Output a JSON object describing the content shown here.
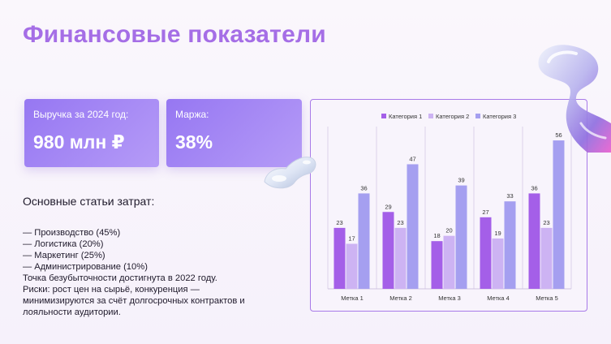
{
  "title": "Финансовые показатели",
  "cards": {
    "revenue": {
      "label": "Выручка за 2024 год:",
      "value": "980 млн ₽"
    },
    "margin": {
      "label": "Маржа:",
      "value": "38%"
    }
  },
  "costs": {
    "heading": "Основные статьи затрат:",
    "items": [
      "— Производство (45%)",
      "— Логистика (20%)",
      "— Маркетинг (25%)",
      "— Администрирование (10%)"
    ]
  },
  "notes": [
    "Точка безубыточности достигнута в 2022 году.",
    "Риски: рост цен на сырьё, конкуренция — минимизируются за счёт долгосрочных контрактов и лояльности аудитории."
  ],
  "colors": {
    "series1": "#a45fe8",
    "series2": "#cdb3f3",
    "series3": "#a59ff0",
    "title": "#a56ee6"
  },
  "chart_data": {
    "type": "bar",
    "categories": [
      "Метка 1",
      "Метка 2",
      "Метка 3",
      "Метка 4",
      "Метка 5"
    ],
    "series": [
      {
        "name": "Категория 1",
        "values": [
          23,
          29,
          18,
          27,
          36
        ]
      },
      {
        "name": "Категория 2",
        "values": [
          17,
          23,
          20,
          19,
          23
        ]
      },
      {
        "name": "Категория 3",
        "values": [
          36,
          47,
          39,
          33,
          56
        ]
      }
    ],
    "ylim": [
      0,
      60
    ],
    "grid": "vertical",
    "legend": "top",
    "data_labels": true
  }
}
